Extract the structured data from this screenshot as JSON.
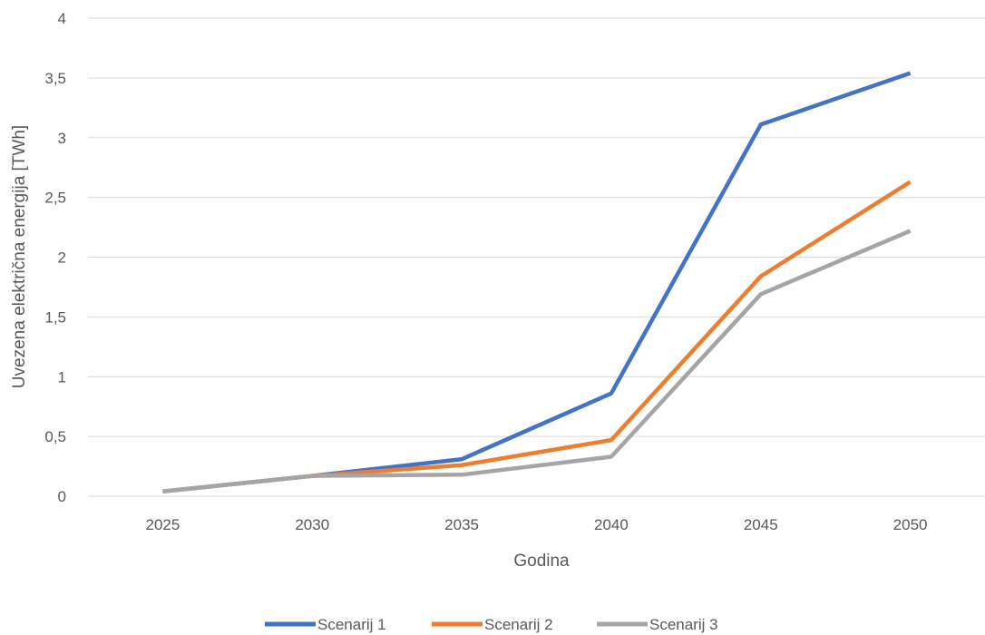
{
  "chart_data": {
    "type": "line",
    "title": "",
    "xlabel": "Godina",
    "ylabel": "Uvezena električna energija  [TWh]",
    "categories": [
      "2025",
      "2030",
      "2035",
      "2040",
      "2045",
      "2050"
    ],
    "ylim": [
      0,
      4
    ],
    "yticks": [
      0,
      0.5,
      1,
      1.5,
      2,
      2.5,
      3,
      3.5,
      4
    ],
    "ytick_labels": [
      "0",
      "0,5",
      "1",
      "1,5",
      "2",
      "2,5",
      "3",
      "3,5",
      "4"
    ],
    "grid": true,
    "legend_position": "bottom",
    "series": [
      {
        "name": "Scenarij 1",
        "color": "#4472c4",
        "values": [
          0.04,
          0.17,
          0.31,
          0.86,
          3.11,
          3.54
        ]
      },
      {
        "name": "Scenarij 2",
        "color": "#ed7d31",
        "values": [
          0.04,
          0.17,
          0.26,
          0.47,
          1.84,
          2.63
        ]
      },
      {
        "name": "Scenarij 3",
        "color": "#a5a5a5",
        "values": [
          0.04,
          0.17,
          0.18,
          0.33,
          1.69,
          2.22
        ]
      }
    ]
  }
}
